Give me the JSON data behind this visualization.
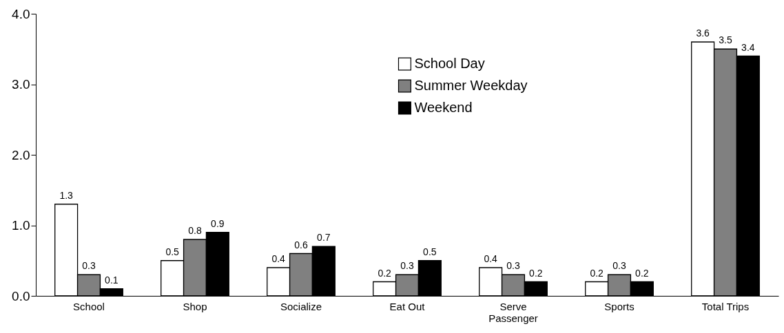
{
  "chart_data": {
    "type": "bar",
    "categories": [
      "School",
      "Shop",
      "Socialize",
      "Eat Out",
      "Serve Passenger",
      "Sports",
      "Total Trips"
    ],
    "series": [
      {
        "name": "School Day",
        "color": "#ffffff",
        "values": [
          1.3,
          0.5,
          0.4,
          0.2,
          0.4,
          0.2,
          3.6
        ]
      },
      {
        "name": "Summer Weekday",
        "color": "#808080",
        "values": [
          0.3,
          0.8,
          0.6,
          0.3,
          0.3,
          0.3,
          3.5
        ]
      },
      {
        "name": "Weekend",
        "color": "#000000",
        "values": [
          0.1,
          0.9,
          0.7,
          0.5,
          0.2,
          0.2,
          3.4
        ]
      }
    ],
    "ylim": [
      0,
      4
    ],
    "yticks": [
      {
        "value": 0,
        "label": "0.0"
      },
      {
        "value": 1,
        "label": "1.0"
      },
      {
        "value": 2,
        "label": "2.0"
      },
      {
        "value": 3,
        "label": "3.0"
      },
      {
        "value": 4,
        "label": "4.0"
      }
    ],
    "grid": false,
    "legend": "top",
    "data_labels": true
  }
}
